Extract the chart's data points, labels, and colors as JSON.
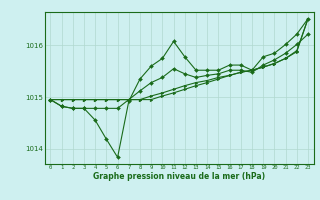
{
  "title": "Graphe pression niveau de la mer (hPa)",
  "bg_color": "#cef0f0",
  "grid_color": "#b0d8d0",
  "line_color": "#1a6b1a",
  "border_color": "#1a6b1a",
  "xlim": [
    -0.5,
    23.5
  ],
  "ylim": [
    1013.7,
    1016.65
  ],
  "yticks": [
    1014,
    1015,
    1016
  ],
  "xticks": [
    0,
    1,
    2,
    3,
    4,
    5,
    6,
    7,
    8,
    9,
    10,
    11,
    12,
    13,
    14,
    15,
    16,
    17,
    18,
    19,
    20,
    21,
    22,
    23
  ],
  "series": [
    [
      1014.95,
      1014.82,
      1014.78,
      1014.78,
      1014.55,
      1014.18,
      1013.83,
      1014.92,
      1015.35,
      1015.6,
      1015.75,
      1016.08,
      1015.78,
      1015.52,
      1015.52,
      1015.52,
      1015.62,
      1015.62,
      1015.52,
      1015.78,
      1015.85,
      1016.02,
      1016.22,
      1016.52
    ],
    [
      1014.95,
      1014.82,
      1014.78,
      1014.78,
      1014.78,
      1014.78,
      1014.78,
      1014.95,
      1015.12,
      1015.28,
      1015.38,
      1015.55,
      1015.45,
      1015.38,
      1015.42,
      1015.45,
      1015.52,
      1015.52,
      1015.48,
      1015.62,
      1015.72,
      1015.85,
      1016.02,
      1016.22
    ],
    [
      1014.95,
      1014.95,
      1014.95,
      1014.95,
      1014.95,
      1014.95,
      1014.95,
      1014.95,
      1014.95,
      1015.02,
      1015.08,
      1015.15,
      1015.22,
      1015.28,
      1015.32,
      1015.38,
      1015.42,
      1015.48,
      1015.52,
      1015.58,
      1015.65,
      1015.75,
      1015.88,
      1016.52
    ],
    [
      1014.95,
      1014.95,
      1014.95,
      1014.95,
      1014.95,
      1014.95,
      1014.95,
      1014.95,
      1014.95,
      1014.95,
      1015.02,
      1015.08,
      1015.15,
      1015.22,
      1015.28,
      1015.35,
      1015.42,
      1015.48,
      1015.52,
      1015.58,
      1015.65,
      1015.75,
      1015.9,
      1016.52
    ]
  ]
}
